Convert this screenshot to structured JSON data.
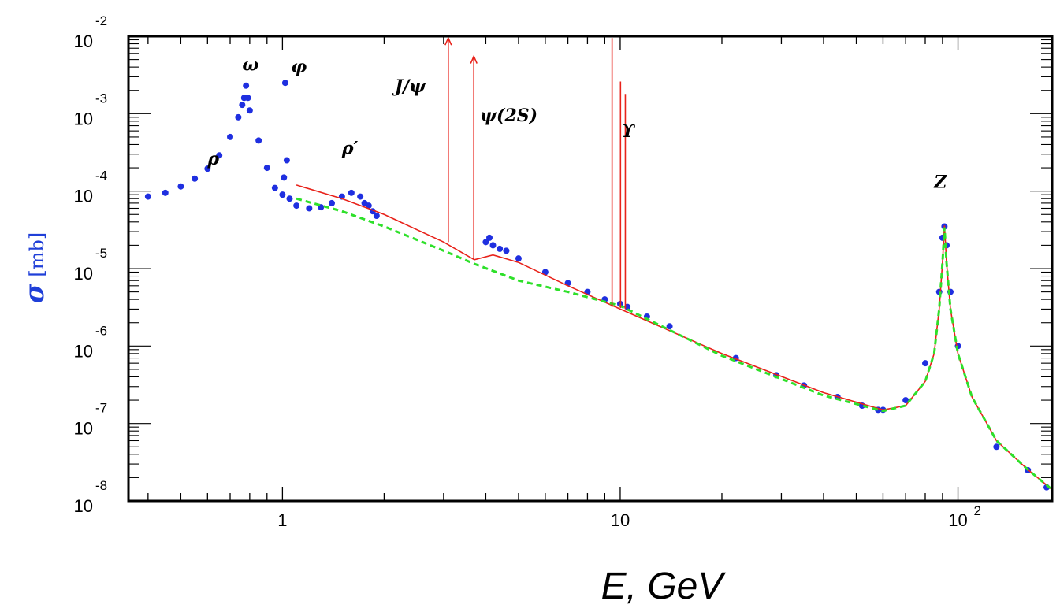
{
  "chart_data": {
    "type": "scatter",
    "title": "",
    "xlabel": "E, GeV",
    "ylabel": {
      "symbol": "σ",
      "unit": "[mb]"
    },
    "x_scale": "log",
    "y_scale": "log",
    "xlim": [
      0.35,
      190
    ],
    "ylim": [
      1e-08,
      0.01
    ],
    "x_ticks": [
      {
        "value": 1,
        "label": "1"
      },
      {
        "value": 10,
        "label": "10"
      },
      {
        "value": 100,
        "label": "10",
        "exponent": "2"
      }
    ],
    "y_ticks": [
      {
        "value": 0.01,
        "base": "10",
        "exponent": "-2"
      },
      {
        "value": 0.001,
        "base": "10",
        "exponent": "-3"
      },
      {
        "value": 0.0001,
        "base": "10",
        "exponent": "-4"
      },
      {
        "value": 1e-05,
        "base": "10",
        "exponent": "-5"
      },
      {
        "value": 1e-06,
        "base": "10",
        "exponent": "-6"
      },
      {
        "value": 1e-07,
        "base": "10",
        "exponent": "-7"
      },
      {
        "value": 1e-08,
        "base": "10",
        "exponent": "-8"
      }
    ],
    "grid": false,
    "colors": {
      "data": "#1f2fe0",
      "theory": "#e8221a",
      "fit": "#2ee02a",
      "axis": "#000000"
    },
    "series": [
      {
        "style": "points",
        "color": "#1f2fe0",
        "x": [
          0.4,
          0.45,
          0.5,
          0.55,
          0.6,
          0.65,
          0.7,
          0.74,
          0.76,
          0.77,
          0.78,
          0.79,
          0.8,
          0.85,
          0.9,
          0.95,
          1.0,
          1.01,
          1.019,
          1.03,
          1.05,
          1.1,
          1.2,
          1.3,
          1.4,
          1.5,
          1.6,
          1.7,
          1.75,
          1.8,
          1.85,
          1.9,
          4.0,
          4.1,
          4.2,
          4.4,
          4.6,
          5.0,
          6.0,
          7.0,
          8.0,
          9.0,
          10.0,
          10.5,
          12.0,
          14.0,
          22.0,
          29.0,
          35.0,
          44.0,
          52.0,
          58.0,
          60.0,
          70.0,
          80.0,
          88.0,
          90.0,
          91.2,
          92.5,
          95.0,
          100.0,
          130.0,
          161.0,
          183.0
        ],
        "y": [
          8.5e-05,
          9.5e-05,
          0.000115,
          0.000145,
          0.000195,
          0.00029,
          0.0005,
          0.0009,
          0.0013,
          0.0016,
          0.0023,
          0.0016,
          0.0011,
          0.00045,
          0.0002,
          0.00011,
          9e-05,
          0.00015,
          0.0025,
          0.00025,
          8e-05,
          6.5e-05,
          6e-05,
          6.2e-05,
          7e-05,
          8.5e-05,
          9.5e-05,
          8.5e-05,
          7e-05,
          6.5e-05,
          5.5e-05,
          4.8e-05,
          2.2e-05,
          2.5e-05,
          2e-05,
          1.8e-05,
          1.7e-05,
          1.35e-05,
          9e-06,
          6.5e-06,
          5e-06,
          4e-06,
          3.5e-06,
          3.2e-06,
          2.4e-06,
          1.8e-06,
          7e-07,
          4.2e-07,
          3.1e-07,
          2.2e-07,
          1.7e-07,
          1.5e-07,
          1.5e-07,
          2e-07,
          6e-07,
          5e-06,
          2.5e-05,
          3.5e-05,
          2e-05,
          5e-06,
          1e-06,
          5e-08,
          2.5e-08,
          1.5e-08
        ]
      },
      {
        "style": "line",
        "color": "#e8221a",
        "x": [
          1.1,
          1.5,
          2.0,
          3.0,
          3.7,
          4.2,
          5.0,
          7.0,
          10.0,
          20.0,
          40.0,
          60.0,
          70.0,
          80.0,
          85.0,
          88.0,
          90.0,
          91.2,
          92.5,
          95.0,
          100.0,
          110.0,
          130.0,
          160.0,
          190.0
        ],
        "y": [
          0.00012,
          8e-05,
          5e-05,
          2.2e-05,
          1.3e-05,
          1.5e-05,
          1.2e-05,
          6e-06,
          3e-06,
          8e-07,
          2.5e-07,
          1.5e-07,
          1.7e-07,
          3.5e-07,
          8e-07,
          3e-06,
          1.2e-05,
          3.6e-05,
          1.2e-05,
          3e-06,
          8e-07,
          2.2e-07,
          6e-08,
          2.6e-08,
          1.4e-08
        ]
      },
      {
        "style": "dashed",
        "color": "#2ee02a",
        "x": [
          1.1,
          1.5,
          2.0,
          3.0,
          3.7,
          5.0,
          7.0,
          10.0,
          20.0,
          40.0,
          60.0,
          70.0,
          80.0,
          85.0,
          88.0,
          90.0,
          91.2,
          92.5,
          95.0,
          100.0,
          110.0,
          130.0,
          160.0,
          190.0
        ],
        "y": [
          8e-05,
          5.5e-05,
          3.5e-05,
          1.7e-05,
          1.15e-05,
          7e-06,
          5e-06,
          3.3e-06,
          7.5e-07,
          2.3e-07,
          1.45e-07,
          1.7e-07,
          3.5e-07,
          8e-07,
          3e-06,
          1.2e-05,
          3.4e-05,
          1.2e-05,
          3e-06,
          8e-07,
          2.2e-07,
          6e-08,
          2.6e-08,
          1.4e-08
        ]
      }
    ],
    "resonance_lines": [
      {
        "x": 3.097,
        "y_from": 2.2e-05,
        "y_to": 0.0095,
        "arrow": true
      },
      {
        "x": 3.686,
        "y_from": 1.3e-05,
        "y_to": 0.0055,
        "arrow": true
      },
      {
        "x": 9.46,
        "y_from": 3.2e-06,
        "y_to": 0.0095,
        "arrow": false
      },
      {
        "x": 10.02,
        "y_from": 3.1e-06,
        "y_to": 0.0026,
        "arrow": false
      },
      {
        "x": 10.355,
        "y_from": 3e-06,
        "y_to": 0.0018,
        "arrow": false
      }
    ],
    "annotations": [
      {
        "text": "ρ",
        "x": 0.6,
        "y": 0.00022
      },
      {
        "text": "ω",
        "x": 0.76,
        "y": 0.0036
      },
      {
        "text": "φ",
        "x": 1.06,
        "y": 0.0034
      },
      {
        "text": "J/ψ",
        "x": 2.15,
        "y": 0.0019
      },
      {
        "text": "ψ(2S)",
        "x": 3.85,
        "y": 0.0008
      },
      {
        "text": "ρ′",
        "x": 1.5,
        "y": 0.0003
      },
      {
        "text": "ϒ",
        "x": 10.1,
        "y": 0.0005
      },
      {
        "text": "Z",
        "x": 85.0,
        "y": 0.00011
      }
    ]
  }
}
